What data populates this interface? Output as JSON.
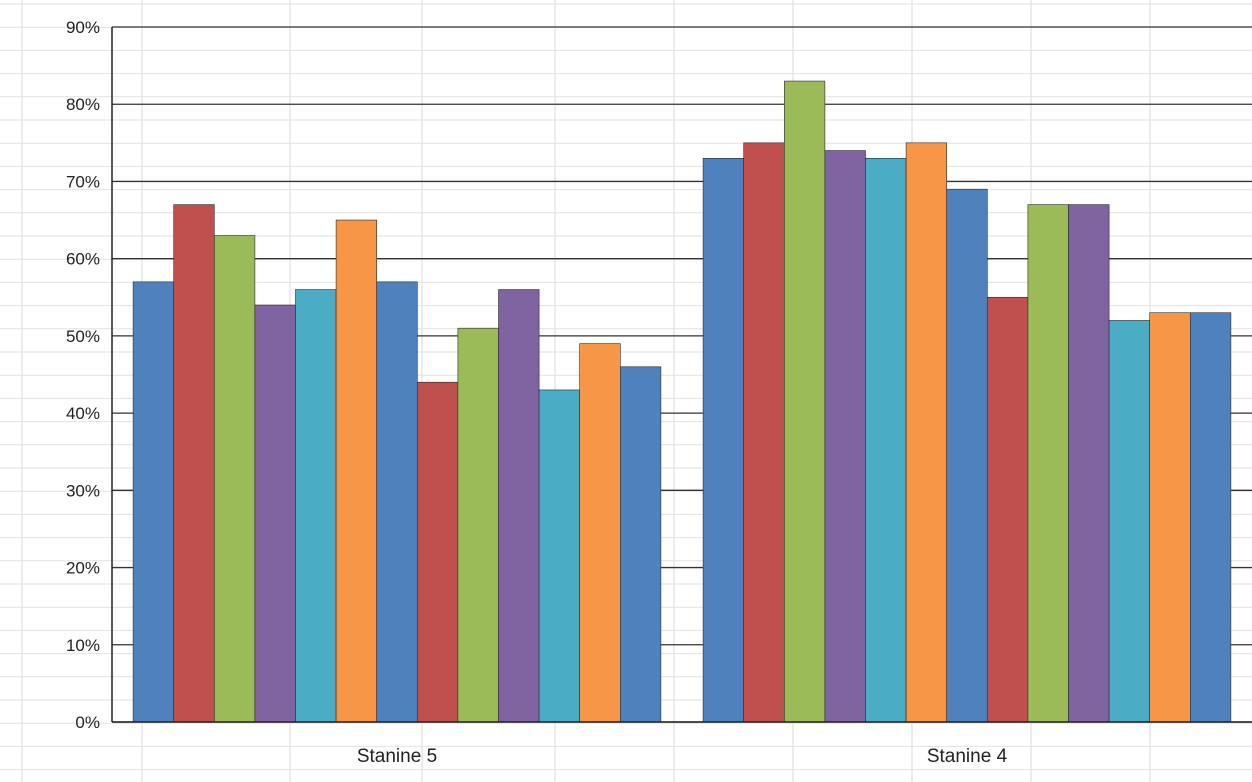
{
  "chart_data": {
    "type": "bar",
    "title": "",
    "xlabel": "",
    "ylabel": "",
    "categories": [
      "Stanine 5",
      "Stanine 4"
    ],
    "ylim": [
      0,
      90
    ],
    "yticks": [
      "0%",
      "10%",
      "20%",
      "30%",
      "40%",
      "50%",
      "60%",
      "70%",
      "80%",
      "90%"
    ],
    "value_format": "percent",
    "series_colors": [
      "#4f81bd",
      "#c0504d",
      "#9bbb59",
      "#8064a2",
      "#4bacc6",
      "#f79646",
      "#4f81bd",
      "#c0504d",
      "#9bbb59",
      "#8064a2",
      "#4bacc6",
      "#f79646",
      "#4f81bd"
    ],
    "series": [
      {
        "values": [
          57,
          73
        ]
      },
      {
        "values": [
          67,
          75
        ]
      },
      {
        "values": [
          63,
          83
        ]
      },
      {
        "values": [
          54,
          74
        ]
      },
      {
        "values": [
          56,
          73
        ]
      },
      {
        "values": [
          65,
          75
        ]
      },
      {
        "values": [
          57,
          69
        ]
      },
      {
        "values": [
          44,
          55
        ]
      },
      {
        "values": [
          51,
          67
        ]
      },
      {
        "values": [
          56,
          67
        ]
      },
      {
        "values": [
          43,
          52
        ]
      },
      {
        "values": [
          49,
          53
        ]
      },
      {
        "values": [
          46,
          53
        ]
      }
    ],
    "grid": true,
    "legend": "none"
  }
}
